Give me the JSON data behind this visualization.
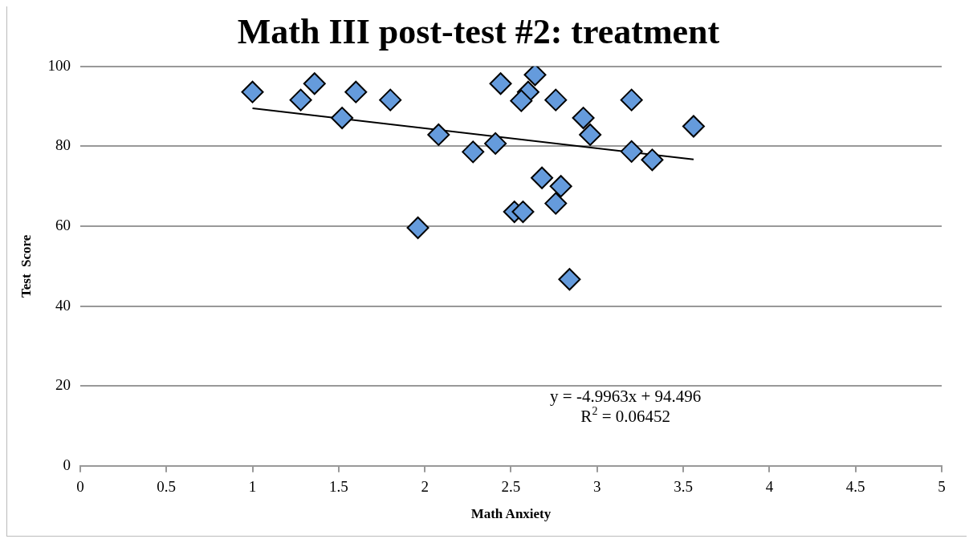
{
  "chart_data": {
    "type": "scatter",
    "title": "Math III post-test #2: treatment",
    "xlabel": "Math Anxiety",
    "ylabel": "Test  Score",
    "xlim": [
      0,
      5
    ],
    "xticks": [
      0,
      0.5,
      1,
      1.5,
      2,
      2.5,
      3,
      3.5,
      4,
      4.5,
      5
    ],
    "ylim": [
      0,
      100
    ],
    "yticks": [
      0,
      20,
      40,
      60,
      80,
      100
    ],
    "grid": "y",
    "marker": "diamond",
    "series": [
      {
        "color": "#659bdc",
        "x": [
          1.0,
          1.28,
          1.36,
          1.52,
          1.6,
          1.8,
          2.08,
          1.96,
          2.28,
          2.41,
          2.44,
          2.64,
          2.6,
          2.56,
          2.76,
          2.68,
          2.79,
          2.76,
          2.52,
          2.57,
          2.84,
          2.92,
          2.96,
          3.2,
          3.2,
          3.32,
          3.56
        ],
        "values": [
          93.6,
          91.6,
          95.7,
          87.1,
          93.6,
          91.6,
          82.9,
          59.6,
          78.6,
          80.7,
          95.7,
          97.9,
          93.6,
          91.4,
          91.6,
          72.1,
          70.0,
          65.7,
          63.6,
          63.6,
          46.7,
          87.1,
          82.9,
          91.6,
          78.7,
          76.6,
          85.0
        ]
      },
      {
        "type": "line",
        "color": "#000000",
        "marker": "none",
        "x": [
          1.0,
          3.56
        ],
        "values": [
          89.5,
          76.7
        ]
      }
    ],
    "annotations": [
      "y = -4.9963x + 94.496",
      "R$^{2}$ = 0.06452"
    ]
  }
}
